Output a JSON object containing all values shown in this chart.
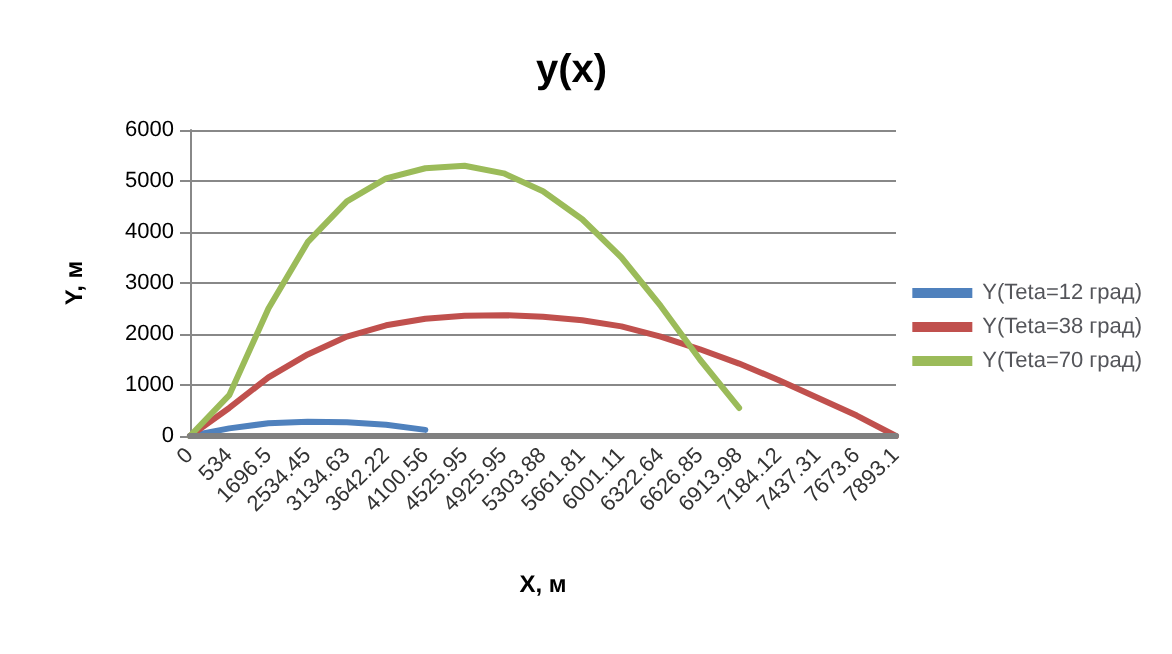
{
  "chart_data": {
    "type": "line",
    "title": "y(x)",
    "xlabel": "X, м",
    "ylabel": "Y, м",
    "categories": [
      "0",
      "534",
      "1696.5",
      "2534.45",
      "3134.63",
      "3642.22",
      "4100.56",
      "4525.95",
      "4925.95",
      "5303.88",
      "5661.81",
      "6001.11",
      "6322.64",
      "6626.85",
      "6913.98",
      "7184.12",
      "7437.31",
      "7673.6",
      "7893.1"
    ],
    "series": [
      {
        "name": "Y(Teta=12 град)",
        "color": "#4f81bd",
        "values": [
          0,
          150,
          250,
          280,
          270,
          220,
          120,
          null,
          null,
          null,
          null,
          null,
          null,
          null,
          null,
          null,
          null,
          null,
          null
        ]
      },
      {
        "name": "Y(Teta=38 град)",
        "color": "#c0504d",
        "values": [
          0,
          550,
          1150,
          1600,
          1950,
          2170,
          2300,
          2360,
          2370,
          2340,
          2270,
          2150,
          1950,
          1700,
          1420,
          1100,
          750,
          400,
          0
        ]
      },
      {
        "name": "Y(Teta=70 град)",
        "color": "#9bbb59",
        "values": [
          0,
          800,
          2500,
          3800,
          4600,
          5050,
          5250,
          5300,
          5150,
          4800,
          4250,
          3500,
          2550,
          1500,
          550,
          null,
          null,
          null,
          null
        ]
      },
      {
        "color": "#808080",
        "values": [
          0,
          0,
          0,
          0,
          0,
          0,
          0,
          0,
          0,
          0,
          0,
          0,
          0,
          0,
          0,
          0,
          0,
          0,
          0
        ]
      }
    ],
    "ylim": [
      0,
      6000
    ],
    "yticks": [
      0,
      1000,
      2000,
      3000,
      4000,
      5000,
      6000
    ],
    "grid": "y",
    "legend": "right",
    "marker": "none",
    "line_style": "solid"
  }
}
